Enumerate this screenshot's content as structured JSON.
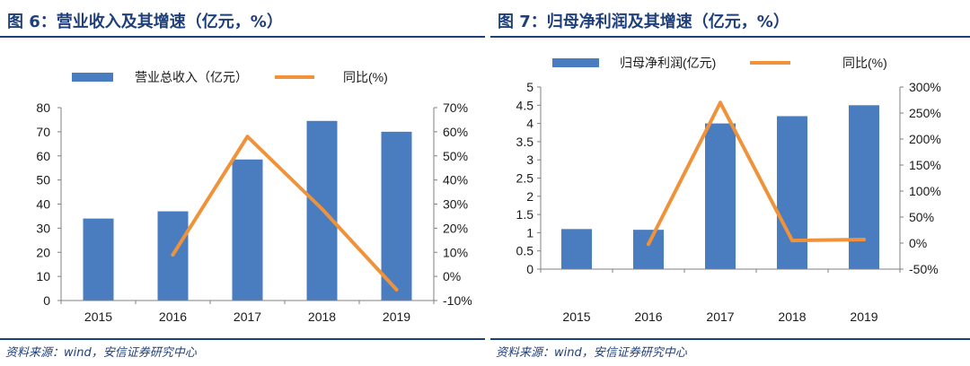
{
  "figures": [
    {
      "title": "图 6：营业收入及其增速（亿元，%）",
      "source": "资料来源：wind，安信证券研究中心"
    },
    {
      "title": "图 7：归母净利润及其增速（亿元，%）",
      "source": "资料来源：wind，安信证券研究中心"
    }
  ],
  "colors": {
    "bar": "#4a7dc0",
    "line": "#f0923a",
    "rule": "#1f3f7a",
    "axis": "#808080"
  },
  "chart_data": [
    {
      "type": "bar",
      "title": "图 6：营业收入及其增速（亿元，%）",
      "categories": [
        "2015",
        "2016",
        "2017",
        "2018",
        "2019"
      ],
      "series": [
        {
          "name": "营业总收入（亿元）",
          "type": "bar",
          "axis": "left",
          "values": [
            34,
            37,
            58.5,
            74.5,
            70
          ]
        },
        {
          "name": "同比(%)",
          "type": "line",
          "axis": "right",
          "values": [
            null,
            9,
            58,
            28,
            -5.5
          ]
        }
      ],
      "y_left": {
        "ticks": [
          0,
          10,
          20,
          30,
          40,
          50,
          60,
          70,
          80
        ],
        "labels": [
          "0",
          "10",
          "20",
          "30",
          "40",
          "50",
          "60",
          "70",
          "80"
        ],
        "min": 0,
        "max": 80
      },
      "y_right": {
        "ticks": [
          -10,
          0,
          10,
          20,
          30,
          40,
          50,
          60,
          70
        ],
        "labels": [
          "-10%",
          "0%",
          "10%",
          "20%",
          "30%",
          "40%",
          "50%",
          "60%",
          "70%"
        ],
        "min": -10,
        "max": 70
      },
      "legend": "top",
      "grid": false
    },
    {
      "type": "bar",
      "title": "图 7：归母净利润及其增速（亿元，%）",
      "categories": [
        "2015",
        "2016",
        "2017",
        "2018",
        "2019"
      ],
      "series": [
        {
          "name": "归母净利润(亿元)",
          "type": "bar",
          "axis": "left",
          "values": [
            1.1,
            1.08,
            4.0,
            4.2,
            4.5
          ]
        },
        {
          "name": "同比(%)",
          "type": "line",
          "axis": "right",
          "values": [
            null,
            -2,
            270,
            5,
            7
          ]
        }
      ],
      "y_left": {
        "ticks": [
          0,
          0.5,
          1,
          1.5,
          2,
          2.5,
          3,
          3.5,
          4,
          4.5,
          5
        ],
        "labels": [
          "0",
          "0.5",
          "1",
          "1.5",
          "2",
          "2.5",
          "3",
          "3.5",
          "4",
          "4.5",
          "5"
        ],
        "min": 0,
        "max": 5
      },
      "y_right": {
        "ticks": [
          -50,
          0,
          50,
          100,
          150,
          200,
          250,
          300
        ],
        "labels": [
          "-50%",
          "0%",
          "50%",
          "100%",
          "150%",
          "200%",
          "250%",
          "300%"
        ],
        "min": -50,
        "max": 300
      },
      "legend": "top",
      "grid": false
    }
  ]
}
